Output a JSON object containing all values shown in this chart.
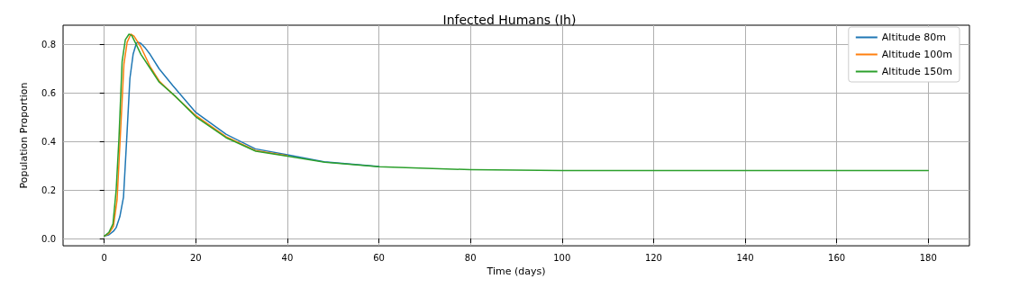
{
  "chart_data": {
    "type": "line",
    "title": "Infected Humans (Ih)",
    "xlabel": "Time (days)",
    "ylabel": "Population Proportion",
    "xlim": [
      -9,
      189
    ],
    "ylim": [
      -0.03,
      0.88
    ],
    "xticks": [
      0,
      20,
      40,
      60,
      80,
      100,
      120,
      140,
      160,
      180
    ],
    "yticks": [
      {
        "value": 0,
        "label": "0.0"
      },
      {
        "value": 0.2,
        "label": "0.2"
      },
      {
        "value": 0.4,
        "label": "0.4"
      },
      {
        "value": 0.6,
        "label": "0.6"
      },
      {
        "value": 0.8,
        "label": "0.8"
      }
    ],
    "grid": true,
    "legend": "top right",
    "marker": "none",
    "line_style": "solid",
    "series": [
      {
        "name": "Altitude 80m",
        "color": "#1f77b4",
        "x": [
          0,
          1,
          2,
          2.6,
          3.4,
          4.2,
          4.9,
          5.6,
          6.3,
          7,
          7.4,
          8,
          9,
          10,
          12,
          15,
          20,
          26.6,
          33,
          40,
          48,
          60
        ],
        "values": [
          0.01,
          0.015,
          0.03,
          0.045,
          0.09,
          0.17,
          0.41,
          0.66,
          0.76,
          0.805,
          0.81,
          0.805,
          0.785,
          0.76,
          0.7,
          0.63,
          0.52,
          0.43,
          0.37,
          0.345,
          0.317,
          0.297
        ]
      },
      {
        "name": "Altitude 100m",
        "color": "#ff7f0e",
        "x": [
          0,
          1,
          2,
          2.8,
          3.5,
          4.3,
          5,
          5.8,
          6.5,
          8,
          10,
          12,
          15,
          20,
          26.6,
          33,
          40
        ],
        "values": [
          0.01,
          0.02,
          0.05,
          0.16,
          0.42,
          0.72,
          0.81,
          0.843,
          0.835,
          0.79,
          0.71,
          0.65,
          0.595,
          0.507,
          0.42,
          0.363,
          0.342
        ]
      },
      {
        "name": "Altitude 150m",
        "color": "#2ca02c",
        "x": [
          0,
          1,
          1.9,
          2.6,
          3.2,
          3.9,
          4.6,
          5.4,
          6,
          7,
          8,
          10.1,
          12,
          15.4,
          20,
          26.6,
          33.1,
          40,
          48.2,
          60,
          80,
          100,
          120,
          140,
          160,
          180
        ],
        "values": [
          0.01,
          0.025,
          0.06,
          0.2,
          0.41,
          0.73,
          0.82,
          0.843,
          0.838,
          0.8,
          0.76,
          0.7,
          0.645,
          0.589,
          0.502,
          0.416,
          0.36,
          0.34,
          0.315,
          0.296,
          0.284,
          0.28,
          0.28,
          0.28,
          0.28,
          0.28
        ]
      }
    ]
  }
}
